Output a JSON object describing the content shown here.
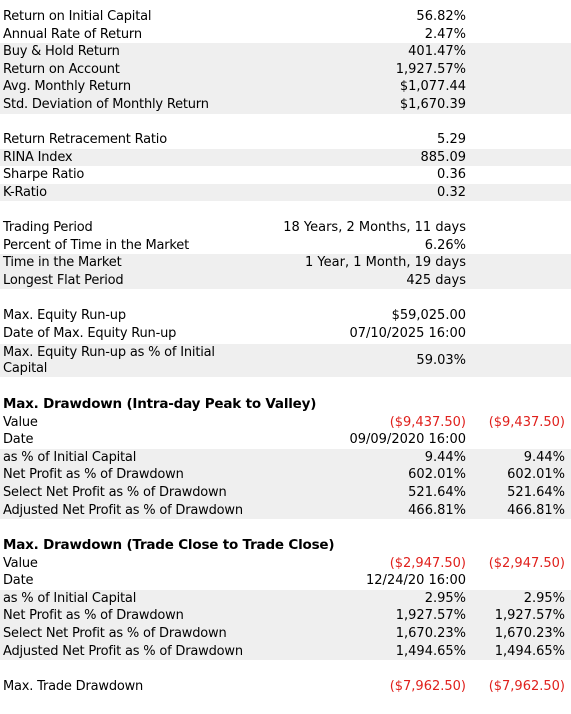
{
  "colors": {
    "negative": "#e0201c",
    "shaded_row": "#efefef"
  },
  "returns": [
    {
      "label": "Return on Initial Capital",
      "value": "56.82%"
    },
    {
      "label": "Annual Rate of Return",
      "value": "2.47%"
    },
    {
      "label": "Buy & Hold Return",
      "value": "401.47%"
    },
    {
      "label": "Return on Account",
      "value": "1,927.57%"
    },
    {
      "label": "Avg. Monthly Return",
      "value": "$1,077.44"
    },
    {
      "label": "Std. Deviation of Monthly Return",
      "value": "$1,670.39"
    }
  ],
  "ratios": [
    {
      "label": "Return Retracement Ratio",
      "value": "5.29"
    },
    {
      "label": "RINA Index",
      "value": "885.09"
    },
    {
      "label": "Sharpe Ratio",
      "value": "0.36"
    },
    {
      "label": "K-Ratio",
      "value": "0.32"
    }
  ],
  "time": [
    {
      "label": "Trading Period",
      "value": "18 Years, 2 Months, 11 days"
    },
    {
      "label": "Percent of Time in the Market",
      "value": "6.26%"
    },
    {
      "label": "Time in the Market",
      "value": "1 Year, 1 Month, 19 days"
    },
    {
      "label": "Longest Flat Period",
      "value": "425 days"
    }
  ],
  "runup": [
    {
      "label": "Max. Equity Run-up",
      "value": "$59,025.00"
    },
    {
      "label": "Date of Max. Equity Run-up",
      "value": "07/10/2025 16:00"
    },
    {
      "label": "Max. Equity Run-up as % of Initial Capital",
      "value": "59.03%"
    }
  ],
  "drawdown_intraday": {
    "title": "Max. Drawdown (Intra-day Peak to Valley)",
    "rows": [
      {
        "label": "Value",
        "v1": "($9,437.50)",
        "v2": "($9,437.50)"
      },
      {
        "label": "Date",
        "v1": "09/09/2020 16:00",
        "v2": ""
      },
      {
        "label": "as % of Initial Capital",
        "v1": "9.44%",
        "v2": "9.44%"
      },
      {
        "label": "Net Profit as % of Drawdown",
        "v1": "602.01%",
        "v2": "602.01%"
      },
      {
        "label": "Select Net Profit as % of Drawdown",
        "v1": "521.64%",
        "v2": "521.64%"
      },
      {
        "label": "Adjusted Net Profit as % of Drawdown",
        "v1": "466.81%",
        "v2": "466.81%"
      }
    ]
  },
  "drawdown_trade": {
    "title": "Max. Drawdown (Trade Close to Trade Close)",
    "rows": [
      {
        "label": "Value",
        "v1": "($2,947.50)",
        "v2": "($2,947.50)"
      },
      {
        "label": "Date",
        "v1": "12/24/20 16:00",
        "v2": ""
      },
      {
        "label": "as % of Initial Capital",
        "v1": "2.95%",
        "v2": "2.95%"
      },
      {
        "label": "Net Profit as % of Drawdown",
        "v1": "1,927.57%",
        "v2": "1,927.57%"
      },
      {
        "label": "Select Net Profit as % of Drawdown",
        "v1": "1,670.23%",
        "v2": "1,670.23%"
      },
      {
        "label": "Adjusted Net Profit as % of Drawdown",
        "v1": "1,494.65%",
        "v2": "1,494.65%"
      }
    ]
  },
  "max_trade_drawdown": {
    "label": "Max. Trade Drawdown",
    "v1": "($7,962.50)",
    "v2": "($7,962.50)"
  }
}
